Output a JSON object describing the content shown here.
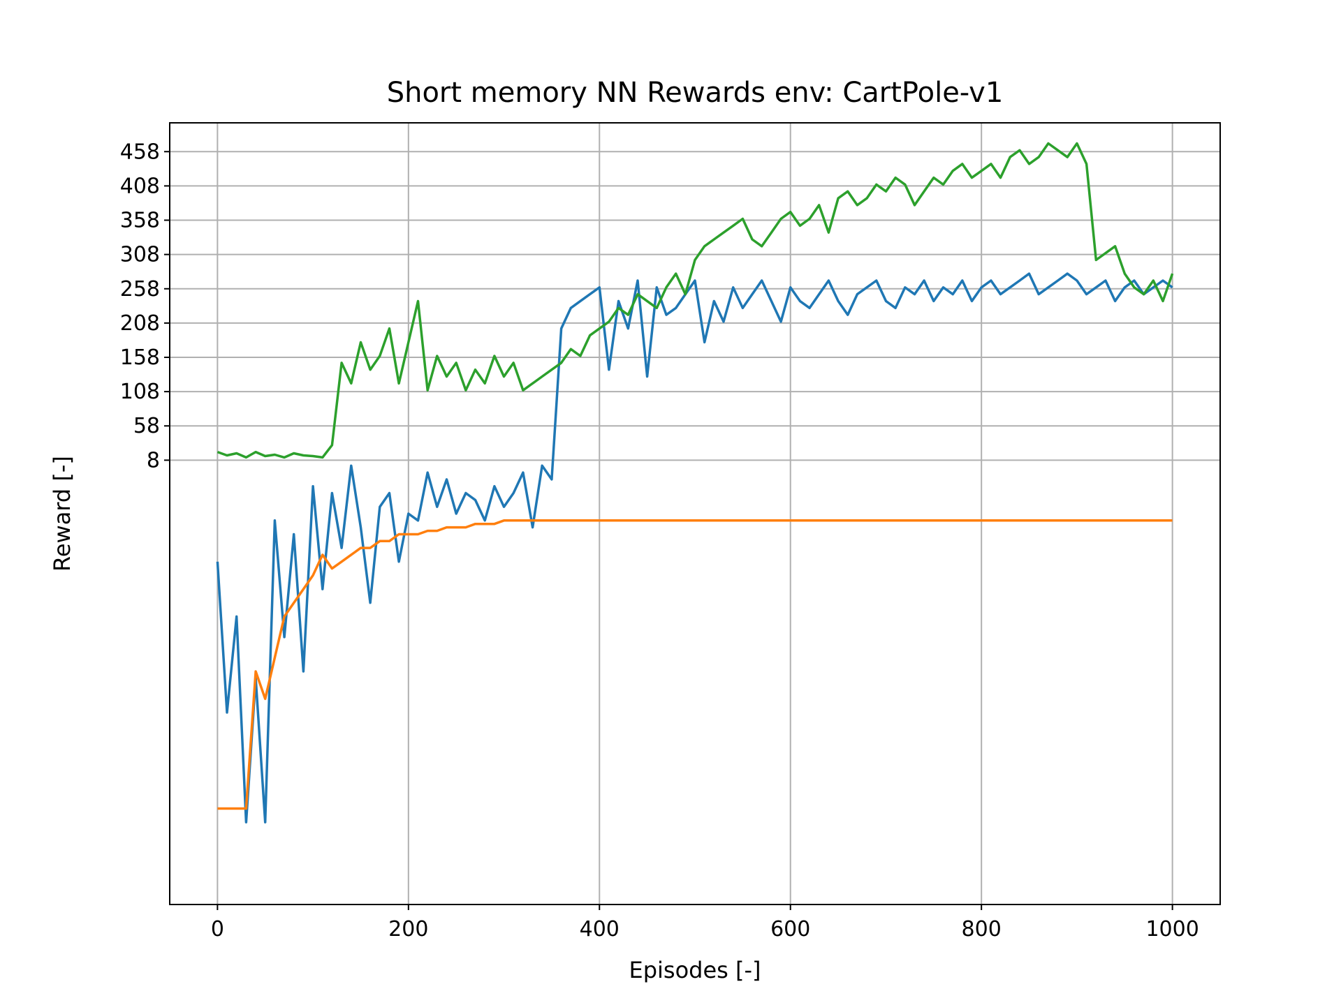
{
  "chart_data": {
    "type": "line",
    "title": "Short memory NN Rewards env: CartPole-v1",
    "xlabel": "Episodes [-]",
    "ylabel": "Reward [-]",
    "xlim": [
      -50,
      1050
    ],
    "ylim": [
      -640,
      500
    ],
    "xticks": [
      0,
      200,
      400,
      600,
      800,
      1000
    ],
    "yticks": [
      8,
      58,
      108,
      158,
      208,
      258,
      308,
      358,
      408,
      458
    ],
    "grid": true,
    "legend": "none",
    "series_colors": [
      "#1f77b4",
      "#ff7f0e",
      "#2ca02c"
    ],
    "series": [
      {
        "x": [
          0,
          10,
          20,
          30,
          40,
          50,
          60,
          70,
          80,
          90,
          100,
          110,
          120,
          130,
          140,
          150,
          160,
          170,
          180,
          190,
          200,
          210,
          220,
          230,
          240,
          250,
          260,
          270,
          280,
          290,
          300,
          310,
          320,
          330,
          340,
          350,
          360,
          370,
          380,
          390,
          400,
          410,
          420,
          430,
          440,
          450,
          460,
          470,
          480,
          490,
          500,
          510,
          520,
          530,
          540,
          550,
          560,
          570,
          580,
          590,
          600,
          610,
          620,
          630,
          640,
          650,
          660,
          670,
          680,
          690,
          700,
          710,
          720,
          730,
          740,
          750,
          760,
          770,
          780,
          790,
          800,
          810,
          820,
          830,
          840,
          850,
          860,
          870,
          880,
          890,
          900,
          910,
          920,
          930,
          940,
          950,
          960,
          970,
          980,
          990,
          1000
        ],
        "values": [
          -140,
          -360,
          -220,
          -520,
          -310,
          -520,
          -80,
          -250,
          -100,
          -300,
          -30,
          -180,
          -40,
          -120,
          0,
          -90,
          -200,
          -60,
          -40,
          -140,
          -70,
          -80,
          -10,
          -60,
          -20,
          -70,
          -40,
          -50,
          -80,
          -30,
          -60,
          -40,
          -10,
          -90,
          0,
          -20,
          200,
          230,
          240,
          250,
          260,
          140,
          240,
          200,
          270,
          130,
          260,
          220,
          230,
          250,
          270,
          180,
          240,
          210,
          260,
          230,
          250,
          270,
          240,
          210,
          260,
          240,
          230,
          250,
          270,
          240,
          220,
          250,
          260,
          270,
          240,
          230,
          260,
          250,
          270,
          240,
          260,
          250,
          270,
          240,
          260,
          270,
          250,
          260,
          270,
          280,
          250,
          260,
          270,
          280,
          270,
          250,
          260,
          270,
          240,
          260,
          270,
          250,
          260,
          270,
          260
        ]
      },
      {
        "x": [
          0,
          10,
          20,
          30,
          40,
          50,
          60,
          70,
          80,
          90,
          100,
          110,
          120,
          130,
          140,
          150,
          160,
          170,
          180,
          190,
          200,
          210,
          220,
          230,
          240,
          250,
          260,
          270,
          280,
          290,
          300,
          310,
          320,
          330,
          340,
          350,
          360,
          370,
          380,
          390,
          400,
          410,
          420,
          430,
          440,
          450,
          460,
          470,
          480,
          490,
          500,
          510,
          520,
          530,
          540,
          550,
          560,
          570,
          580,
          590,
          600,
          610,
          620,
          630,
          640,
          650,
          660,
          670,
          680,
          690,
          700,
          710,
          720,
          730,
          740,
          750,
          760,
          770,
          780,
          790,
          800,
          810,
          820,
          830,
          840,
          850,
          860,
          870,
          880,
          890,
          900,
          910,
          920,
          930,
          940,
          950,
          960,
          970,
          980,
          990,
          1000
        ],
        "values": [
          -500,
          -500,
          -500,
          -500,
          -300,
          -340,
          -280,
          -220,
          -200,
          -180,
          -160,
          -130,
          -150,
          -140,
          -130,
          -120,
          -120,
          -110,
          -110,
          -100,
          -100,
          -100,
          -95,
          -95,
          -90,
          -90,
          -90,
          -85,
          -85,
          -85,
          -80,
          -80,
          -80,
          -80,
          -80,
          -80,
          -80,
          -80,
          -80,
          -80,
          -80,
          -80,
          -80,
          -80,
          -80,
          -80,
          -80,
          -80,
          -80,
          -80,
          -80,
          -80,
          -80,
          -80,
          -80,
          -80,
          -80,
          -80,
          -80,
          -80,
          -80,
          -80,
          -80,
          -80,
          -80,
          -80,
          -80,
          -80,
          -80,
          -80,
          -80,
          -80,
          -80,
          -80,
          -80,
          -80,
          -80,
          -80,
          -80,
          -80,
          -80,
          -80,
          -80,
          -80,
          -80,
          -80,
          -80,
          -80,
          -80,
          -80,
          -80,
          -80,
          -80,
          -80,
          -80,
          -80,
          -80,
          -80,
          -80,
          -80,
          -80
        ]
      },
      {
        "x": [
          0,
          10,
          20,
          30,
          40,
          50,
          60,
          70,
          80,
          90,
          100,
          110,
          120,
          130,
          140,
          150,
          160,
          170,
          180,
          190,
          200,
          210,
          220,
          230,
          240,
          250,
          260,
          270,
          280,
          290,
          300,
          310,
          320,
          330,
          340,
          350,
          360,
          370,
          380,
          390,
          400,
          410,
          420,
          430,
          440,
          450,
          460,
          470,
          480,
          490,
          500,
          510,
          520,
          530,
          540,
          550,
          560,
          570,
          580,
          590,
          600,
          610,
          620,
          630,
          640,
          650,
          660,
          670,
          680,
          690,
          700,
          710,
          720,
          730,
          740,
          750,
          760,
          770,
          780,
          790,
          800,
          810,
          820,
          830,
          840,
          850,
          860,
          870,
          880,
          890,
          900,
          910,
          920,
          930,
          940,
          950,
          960,
          970,
          980,
          990,
          1000
        ],
        "values": [
          20,
          15,
          18,
          12,
          20,
          14,
          16,
          12,
          18,
          15,
          14,
          12,
          30,
          150,
          120,
          180,
          140,
          160,
          200,
          120,
          180,
          240,
          110,
          160,
          130,
          150,
          110,
          140,
          120,
          160,
          130,
          150,
          110,
          120,
          130,
          140,
          150,
          170,
          160,
          190,
          200,
          210,
          230,
          220,
          250,
          240,
          230,
          260,
          280,
          250,
          300,
          320,
          330,
          340,
          350,
          360,
          330,
          320,
          340,
          360,
          370,
          350,
          360,
          380,
          340,
          390,
          400,
          380,
          390,
          410,
          400,
          420,
          410,
          380,
          400,
          420,
          410,
          430,
          440,
          420,
          430,
          440,
          420,
          450,
          460,
          440,
          450,
          470,
          460,
          450,
          470,
          440,
          300,
          310,
          320,
          280,
          260,
          250,
          270,
          240,
          280
        ]
      }
    ]
  }
}
